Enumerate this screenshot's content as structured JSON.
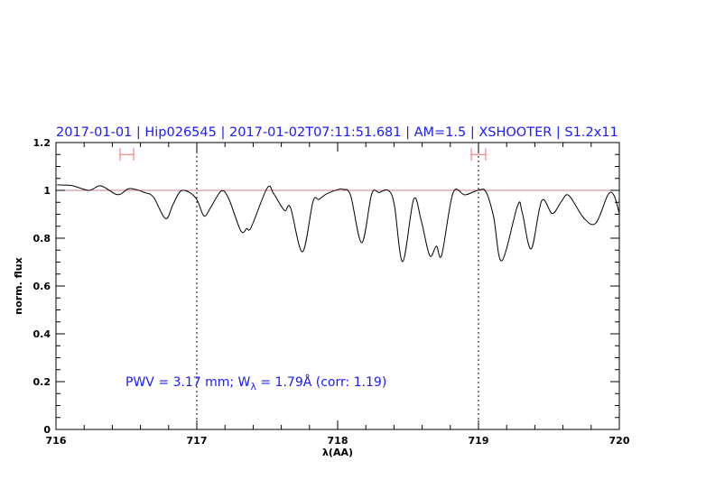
{
  "chart_data": {
    "type": "line",
    "title": "2017-01-01 | Hip026545 | 2017-01-02T07:11:51.681 | AM=1.5 | XSHOOTER | S1.2x11",
    "xlabel": "λ(AA)",
    "ylabel": "norm. flux",
    "xlim": [
      716,
      720
    ],
    "ylim": [
      0,
      1.2
    ],
    "xticks": [
      716,
      717,
      718,
      719,
      720
    ],
    "xtick_labels": [
      "716",
      "717",
      "718",
      "719",
      "720"
    ],
    "yticks": [
      0,
      0.2,
      0.4,
      0.6,
      0.8,
      1,
      1.2
    ],
    "ytick_labels": [
      "0",
      "0.2",
      "0.4",
      "0.6",
      "0.8",
      "1",
      "1.2"
    ],
    "grid": false,
    "reference_line": 1.0,
    "vertical_markers": [
      717,
      719
    ],
    "continuum_windows": [
      {
        "center": 716.5,
        "min": 716.455,
        "max": 716.551,
        "y": 1.15
      },
      {
        "center": 719.0,
        "min": 718.949,
        "max": 719.051,
        "y": 1.15
      }
    ],
    "annotation": {
      "prefix": "PWV = 3.17 mm; W",
      "sub": "λ",
      "suffix": " = 1.79Å (corr: 1.19)"
    },
    "colors": {
      "spectrum": "#000000",
      "reference_line": "#c88080",
      "windows": "#ff6666",
      "text": "#1a1aff"
    },
    "series": [
      {
        "x": [
          716.008,
          716.115,
          716.233,
          716.319,
          716.436,
          716.511,
          716.564,
          716.628,
          716.692,
          716.778,
          716.831,
          716.885,
          716.949,
          717.002,
          717.051,
          717.098,
          717.173,
          717.226,
          717.312,
          717.354,
          717.387,
          717.5,
          717.547,
          717.622,
          717.665,
          717.75,
          717.825,
          717.867,
          717.921,
          718.006,
          718.038,
          718.092,
          718.171,
          718.242,
          718.295,
          718.359,
          718.402,
          718.462,
          718.54,
          718.594,
          718.654,
          718.701,
          718.739,
          718.819,
          718.904,
          719.0,
          719.053,
          719.107,
          719.165,
          719.278,
          719.31,
          719.374,
          719.449,
          719.524,
          719.588,
          719.641,
          719.748,
          719.833,
          719.919,
          719.962,
          720.0
        ],
        "y": [
          1.023,
          1.02,
          1.0,
          1.019,
          0.982,
          1.006,
          1.004,
          0.991,
          0.972,
          0.882,
          0.941,
          0.997,
          0.991,
          0.96,
          0.893,
          0.928,
          0.997,
          0.966,
          0.831,
          0.84,
          0.847,
          1.01,
          0.985,
          0.916,
          0.928,
          0.743,
          0.953,
          0.962,
          0.985,
          1.004,
          1.004,
          0.979,
          0.781,
          0.985,
          0.991,
          1.0,
          0.941,
          0.702,
          0.963,
          0.872,
          0.727,
          0.767,
          0.73,
          0.989,
          0.981,
          1.001,
          0.994,
          0.891,
          0.705,
          0.937,
          0.909,
          0.755,
          0.957,
          0.903,
          0.953,
          0.979,
          0.884,
          0.863,
          0.981,
          0.979,
          0.903
        ]
      }
    ]
  }
}
